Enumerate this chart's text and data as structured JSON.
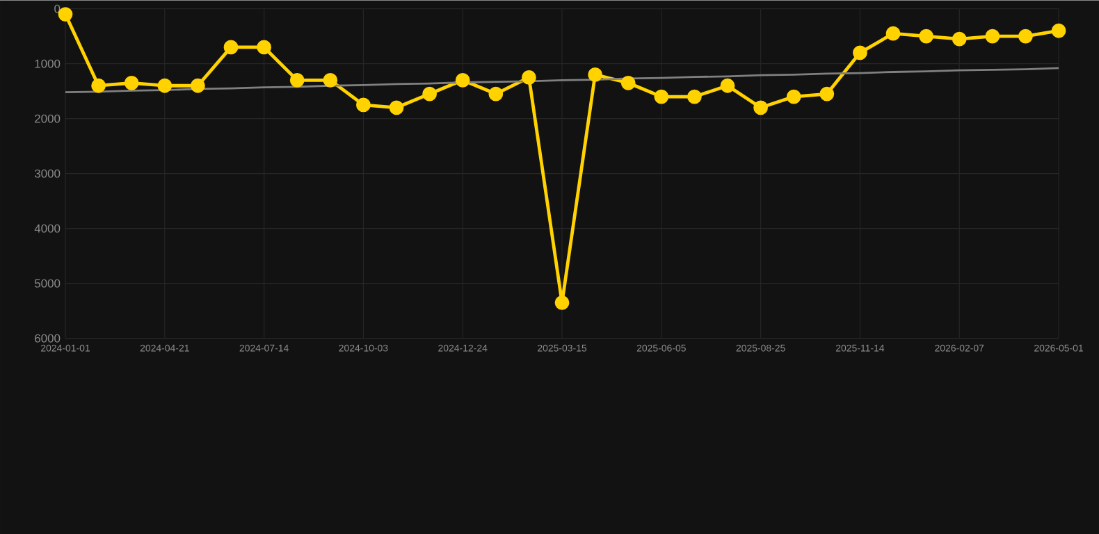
{
  "chart_data": {
    "type": "line",
    "categories": [
      "2024-01-01",
      null,
      null,
      "2024-04-21",
      null,
      null,
      "2024-07-14",
      null,
      null,
      "2024-10-03",
      null,
      null,
      "2024-12-24",
      null,
      null,
      "2025-03-15",
      null,
      null,
      "2025-06-05",
      null,
      null,
      "2025-08-25",
      null,
      null,
      "2025-11-14",
      null,
      null,
      "2026-02-07",
      null,
      null,
      "2026-05-01"
    ],
    "series": [
      {
        "color": "#ffd200",
        "marker": "circle",
        "values": [
          100,
          1400,
          1350,
          1400,
          1400,
          700,
          700,
          1300,
          1300,
          1750,
          1800,
          1550,
          1300,
          1550,
          1250,
          5350,
          1200,
          1350,
          1600,
          1600,
          1400,
          1800,
          1600,
          1550,
          800,
          450,
          500,
          550,
          500,
          500,
          400
        ]
      },
      {
        "type": "line",
        "color": "#808080",
        "marker": "none",
        "values": [
          1520,
          1510,
          1490,
          1480,
          1460,
          1450,
          1430,
          1420,
          1400,
          1390,
          1370,
          1360,
          1340,
          1330,
          1320,
          1300,
          1290,
          1270,
          1260,
          1240,
          1230,
          1210,
          1200,
          1180,
          1170,
          1150,
          1140,
          1120,
          1110,
          1100,
          1080
        ]
      }
    ],
    "ylim": [
      6000,
      0
    ],
    "yticks": [
      0,
      1000,
      2000,
      3000,
      4000,
      5000,
      6000
    ],
    "grid": true,
    "line_style": "solid"
  }
}
